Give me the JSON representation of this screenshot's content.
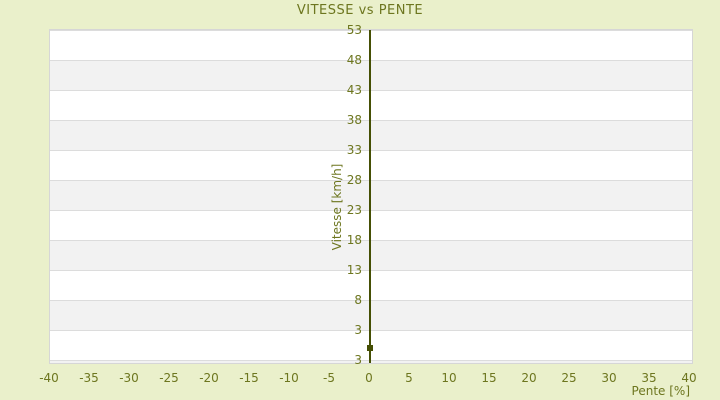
{
  "chart_data": {
    "type": "scatter",
    "title": "VITESSE vs PENTE",
    "xlabel": "Pente [%]",
    "ylabel": "Vitesse [km/h]",
    "x_tick_labels": [
      "-40",
      "-35",
      "-30",
      "-25",
      "-20",
      "-15",
      "-10",
      "-5",
      "0",
      "5",
      "10",
      "15",
      "20",
      "25",
      "30",
      "35",
      "40"
    ],
    "y_tick_labels_top_to_bottom": [
      "53",
      "48",
      "43",
      "38",
      "33",
      "28",
      "23",
      "18",
      "13",
      "8",
      "3",
      "3"
    ],
    "xlim": [
      -40,
      40
    ],
    "ylim": [
      3,
      53
    ],
    "points": [
      {
        "x": 0,
        "y": 5
      }
    ],
    "grid": "horizontal gridlines with alternating white and gray bands, no vertical gridlines",
    "legend_position": "none"
  },
  "colors": {
    "page_background": "#eaf0cb",
    "plot_background": "#ffffff",
    "band_gray": "#f2f2f2",
    "gridline": "#dcdcdc",
    "plot_border": "#d6d6d6",
    "text_olive": "#6d761f",
    "axis_line": "#454f04",
    "point": "#454f04"
  }
}
